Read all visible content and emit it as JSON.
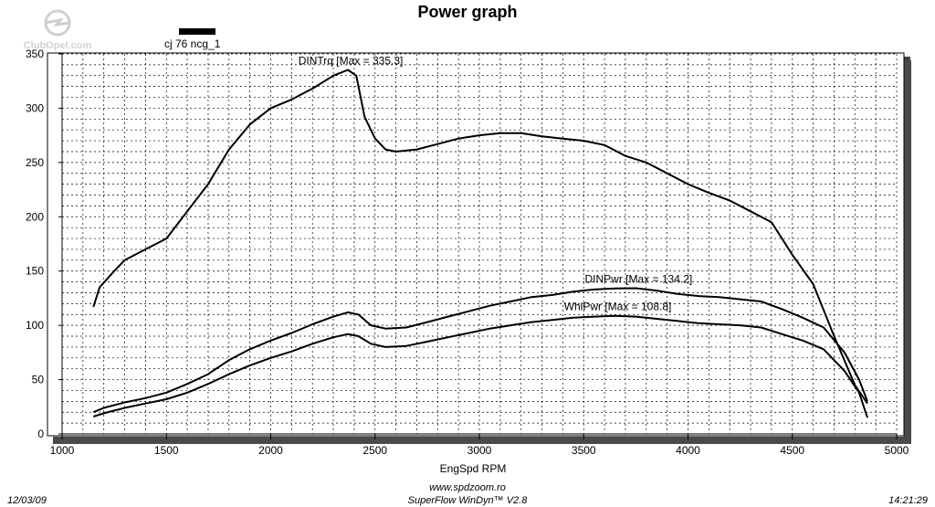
{
  "logo": {
    "text": "ClubOpel.com",
    "icon": "opel-logo-icon"
  },
  "legend": {
    "text": "cj 76 ncg_1",
    "swatch_color": "#000000"
  },
  "footer": {
    "date": "12/03/09",
    "website": "www.spdzoom.ro",
    "software": "SuperFlow WinDyn™ V2.8",
    "time": "14:21:29"
  },
  "chart_data": {
    "type": "line",
    "title": "Power graph",
    "xlabel": "EngSpd  RPM",
    "ylabel": "",
    "xlim": [
      1000,
      5000
    ],
    "ylim": [
      0,
      350
    ],
    "x_ticks": [
      1000,
      1500,
      2000,
      2500,
      3000,
      3500,
      4000,
      4500,
      5000
    ],
    "y_ticks": [
      0,
      50,
      100,
      150,
      200,
      250,
      300,
      350
    ],
    "grid": true,
    "series": [
      {
        "name": "DINTrq",
        "label": "DINTrq [Max = 335.3]",
        "points": [
          [
            1150,
            117
          ],
          [
            1180,
            135
          ],
          [
            1250,
            150
          ],
          [
            1300,
            160
          ],
          [
            1400,
            170
          ],
          [
            1500,
            180
          ],
          [
            1600,
            205
          ],
          [
            1700,
            230
          ],
          [
            1800,
            262
          ],
          [
            1900,
            285
          ],
          [
            2000,
            300
          ],
          [
            2100,
            308
          ],
          [
            2200,
            318
          ],
          [
            2300,
            330
          ],
          [
            2370,
            335.3
          ],
          [
            2410,
            330
          ],
          [
            2450,
            292
          ],
          [
            2500,
            272
          ],
          [
            2550,
            262
          ],
          [
            2600,
            260
          ],
          [
            2700,
            262
          ],
          [
            2800,
            267
          ],
          [
            2900,
            272
          ],
          [
            3000,
            275
          ],
          [
            3100,
            277
          ],
          [
            3200,
            277
          ],
          [
            3300,
            274
          ],
          [
            3400,
            272
          ],
          [
            3500,
            270
          ],
          [
            3600,
            266
          ],
          [
            3700,
            256
          ],
          [
            3800,
            250
          ],
          [
            3900,
            240
          ],
          [
            4000,
            230
          ],
          [
            4100,
            222
          ],
          [
            4200,
            215
          ],
          [
            4300,
            205
          ],
          [
            4400,
            195
          ],
          [
            4500,
            165
          ],
          [
            4600,
            138
          ],
          [
            4700,
            90
          ],
          [
            4800,
            45
          ],
          [
            4860,
            28
          ]
        ]
      },
      {
        "name": "DINPwr",
        "label": "DINPwr [Max = 134.2]",
        "points": [
          [
            1150,
            20
          ],
          [
            1200,
            24
          ],
          [
            1300,
            29
          ],
          [
            1400,
            33
          ],
          [
            1500,
            38
          ],
          [
            1600,
            46
          ],
          [
            1700,
            55
          ],
          [
            1800,
            68
          ],
          [
            1900,
            78
          ],
          [
            2000,
            86
          ],
          [
            2100,
            93
          ],
          [
            2200,
            101
          ],
          [
            2300,
            108
          ],
          [
            2370,
            112
          ],
          [
            2420,
            110
          ],
          [
            2480,
            100
          ],
          [
            2550,
            97
          ],
          [
            2650,
            98
          ],
          [
            2750,
            103
          ],
          [
            2850,
            108
          ],
          [
            2950,
            113
          ],
          [
            3050,
            118
          ],
          [
            3150,
            122
          ],
          [
            3250,
            126
          ],
          [
            3350,
            128
          ],
          [
            3450,
            131
          ],
          [
            3550,
            133
          ],
          [
            3650,
            134
          ],
          [
            3750,
            134.2
          ],
          [
            3850,
            132
          ],
          [
            3950,
            129
          ],
          [
            4050,
            127
          ],
          [
            4150,
            126
          ],
          [
            4250,
            124
          ],
          [
            4350,
            122
          ],
          [
            4450,
            115
          ],
          [
            4550,
            107
          ],
          [
            4650,
            98
          ],
          [
            4750,
            75
          ],
          [
            4820,
            50
          ],
          [
            4860,
            30
          ]
        ]
      },
      {
        "name": "WhlPwr",
        "label": "WhlPwr [Max = 108.8]",
        "points": [
          [
            1150,
            16
          ],
          [
            1200,
            19
          ],
          [
            1300,
            24
          ],
          [
            1400,
            28
          ],
          [
            1500,
            32
          ],
          [
            1600,
            38
          ],
          [
            1700,
            46
          ],
          [
            1800,
            55
          ],
          [
            1900,
            63
          ],
          [
            2000,
            70
          ],
          [
            2100,
            76
          ],
          [
            2200,
            83
          ],
          [
            2300,
            89
          ],
          [
            2370,
            92
          ],
          [
            2420,
            90
          ],
          [
            2480,
            83
          ],
          [
            2550,
            80
          ],
          [
            2650,
            81
          ],
          [
            2750,
            85
          ],
          [
            2850,
            89
          ],
          [
            2950,
            93
          ],
          [
            3050,
            97
          ],
          [
            3150,
            100
          ],
          [
            3250,
            103
          ],
          [
            3350,
            105
          ],
          [
            3450,
            107
          ],
          [
            3550,
            108
          ],
          [
            3650,
            108.8
          ],
          [
            3750,
            108
          ],
          [
            3850,
            106
          ],
          [
            3950,
            104
          ],
          [
            4050,
            102
          ],
          [
            4150,
            101
          ],
          [
            4250,
            100
          ],
          [
            4350,
            98
          ],
          [
            4450,
            92
          ],
          [
            4550,
            86
          ],
          [
            4650,
            78
          ],
          [
            4750,
            58
          ],
          [
            4820,
            38
          ],
          [
            4860,
            15
          ]
        ]
      }
    ]
  }
}
